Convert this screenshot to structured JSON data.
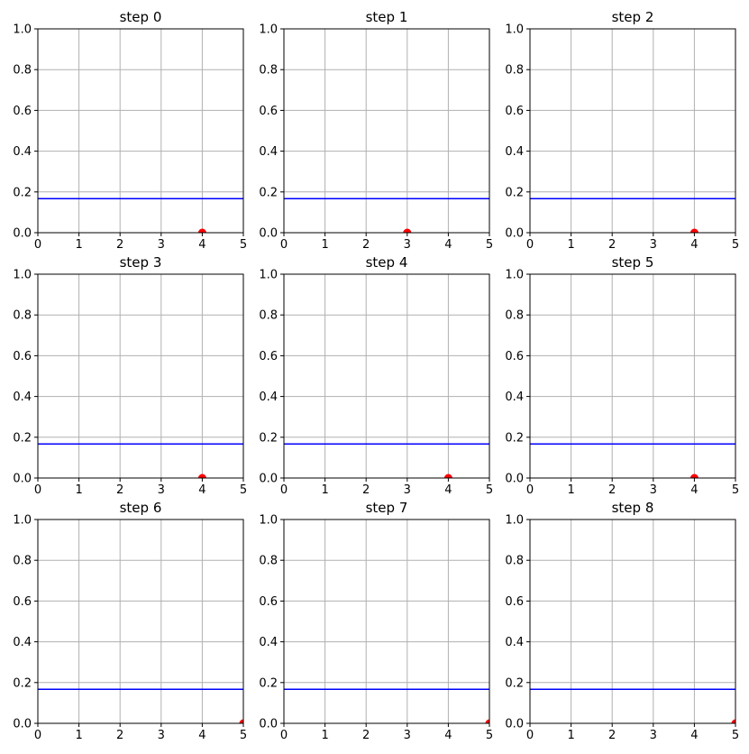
{
  "chart_data": [
    {
      "type": "line",
      "title": "step 0",
      "xlim": [
        0,
        5
      ],
      "ylim": [
        0.0,
        1.0
      ],
      "xticks": [
        "0",
        "1",
        "2",
        "3",
        "4",
        "5"
      ],
      "yticks": [
        "0.0",
        "0.2",
        "0.4",
        "0.6",
        "0.8",
        "1.0"
      ],
      "grid": true,
      "hline": {
        "y": 0.167,
        "color": "#0000ff"
      },
      "points": [
        {
          "x": 4,
          "y": 0.0,
          "color": "#ff0000"
        }
      ]
    },
    {
      "type": "line",
      "title": "step 1",
      "xlim": [
        0,
        5
      ],
      "ylim": [
        0.0,
        1.0
      ],
      "xticks": [
        "0",
        "1",
        "2",
        "3",
        "4",
        "5"
      ],
      "yticks": [
        "0.0",
        "0.2",
        "0.4",
        "0.6",
        "0.8",
        "1.0"
      ],
      "grid": true,
      "hline": {
        "y": 0.167,
        "color": "#0000ff"
      },
      "points": [
        {
          "x": 3,
          "y": 0.0,
          "color": "#ff0000"
        }
      ]
    },
    {
      "type": "line",
      "title": "step 2",
      "xlim": [
        0,
        5
      ],
      "ylim": [
        0.0,
        1.0
      ],
      "xticks": [
        "0",
        "1",
        "2",
        "3",
        "4",
        "5"
      ],
      "yticks": [
        "0.0",
        "0.2",
        "0.4",
        "0.6",
        "0.8",
        "1.0"
      ],
      "grid": true,
      "hline": {
        "y": 0.167,
        "color": "#0000ff"
      },
      "points": [
        {
          "x": 4,
          "y": 0.0,
          "color": "#ff0000"
        }
      ]
    },
    {
      "type": "line",
      "title": "step 3",
      "xlim": [
        0,
        5
      ],
      "ylim": [
        0.0,
        1.0
      ],
      "xticks": [
        "0",
        "1",
        "2",
        "3",
        "4",
        "5"
      ],
      "yticks": [
        "0.0",
        "0.2",
        "0.4",
        "0.6",
        "0.8",
        "1.0"
      ],
      "grid": true,
      "hline": {
        "y": 0.167,
        "color": "#0000ff"
      },
      "points": [
        {
          "x": 4,
          "y": 0.0,
          "color": "#ff0000"
        }
      ]
    },
    {
      "type": "line",
      "title": "step 4",
      "xlim": [
        0,
        5
      ],
      "ylim": [
        0.0,
        1.0
      ],
      "xticks": [
        "0",
        "1",
        "2",
        "3",
        "4",
        "5"
      ],
      "yticks": [
        "0.0",
        "0.2",
        "0.4",
        "0.6",
        "0.8",
        "1.0"
      ],
      "grid": true,
      "hline": {
        "y": 0.167,
        "color": "#0000ff"
      },
      "points": [
        {
          "x": 4,
          "y": 0.0,
          "color": "#ff0000"
        }
      ]
    },
    {
      "type": "line",
      "title": "step 5",
      "xlim": [
        0,
        5
      ],
      "ylim": [
        0.0,
        1.0
      ],
      "xticks": [
        "0",
        "1",
        "2",
        "3",
        "4",
        "5"
      ],
      "yticks": [
        "0.0",
        "0.2",
        "0.4",
        "0.6",
        "0.8",
        "1.0"
      ],
      "grid": true,
      "hline": {
        "y": 0.167,
        "color": "#0000ff"
      },
      "points": [
        {
          "x": 4,
          "y": 0.0,
          "color": "#ff0000"
        }
      ]
    },
    {
      "type": "line",
      "title": "step 6",
      "xlim": [
        0,
        5
      ],
      "ylim": [
        0.0,
        1.0
      ],
      "xticks": [
        "0",
        "1",
        "2",
        "3",
        "4",
        "5"
      ],
      "yticks": [
        "0.0",
        "0.2",
        "0.4",
        "0.6",
        "0.8",
        "1.0"
      ],
      "grid": true,
      "hline": {
        "y": 0.167,
        "color": "#0000ff"
      },
      "points": [
        {
          "x": 5,
          "y": 0.0,
          "color": "#ff0000"
        }
      ]
    },
    {
      "type": "line",
      "title": "step 7",
      "xlim": [
        0,
        5
      ],
      "ylim": [
        0.0,
        1.0
      ],
      "xticks": [
        "0",
        "1",
        "2",
        "3",
        "4",
        "5"
      ],
      "yticks": [
        "0.0",
        "0.2",
        "0.4",
        "0.6",
        "0.8",
        "1.0"
      ],
      "grid": true,
      "hline": {
        "y": 0.167,
        "color": "#0000ff"
      },
      "points": [
        {
          "x": 5,
          "y": 0.0,
          "color": "#ff0000"
        }
      ]
    },
    {
      "type": "line",
      "title": "step 8",
      "xlim": [
        0,
        5
      ],
      "ylim": [
        0.0,
        1.0
      ],
      "xticks": [
        "0",
        "1",
        "2",
        "3",
        "4",
        "5"
      ],
      "yticks": [
        "0.0",
        "0.2",
        "0.4",
        "0.6",
        "0.8",
        "1.0"
      ],
      "grid": true,
      "hline": {
        "y": 0.167,
        "color": "#0000ff"
      },
      "points": [
        {
          "x": 5,
          "y": 0.0,
          "color": "#ff0000"
        }
      ]
    }
  ]
}
